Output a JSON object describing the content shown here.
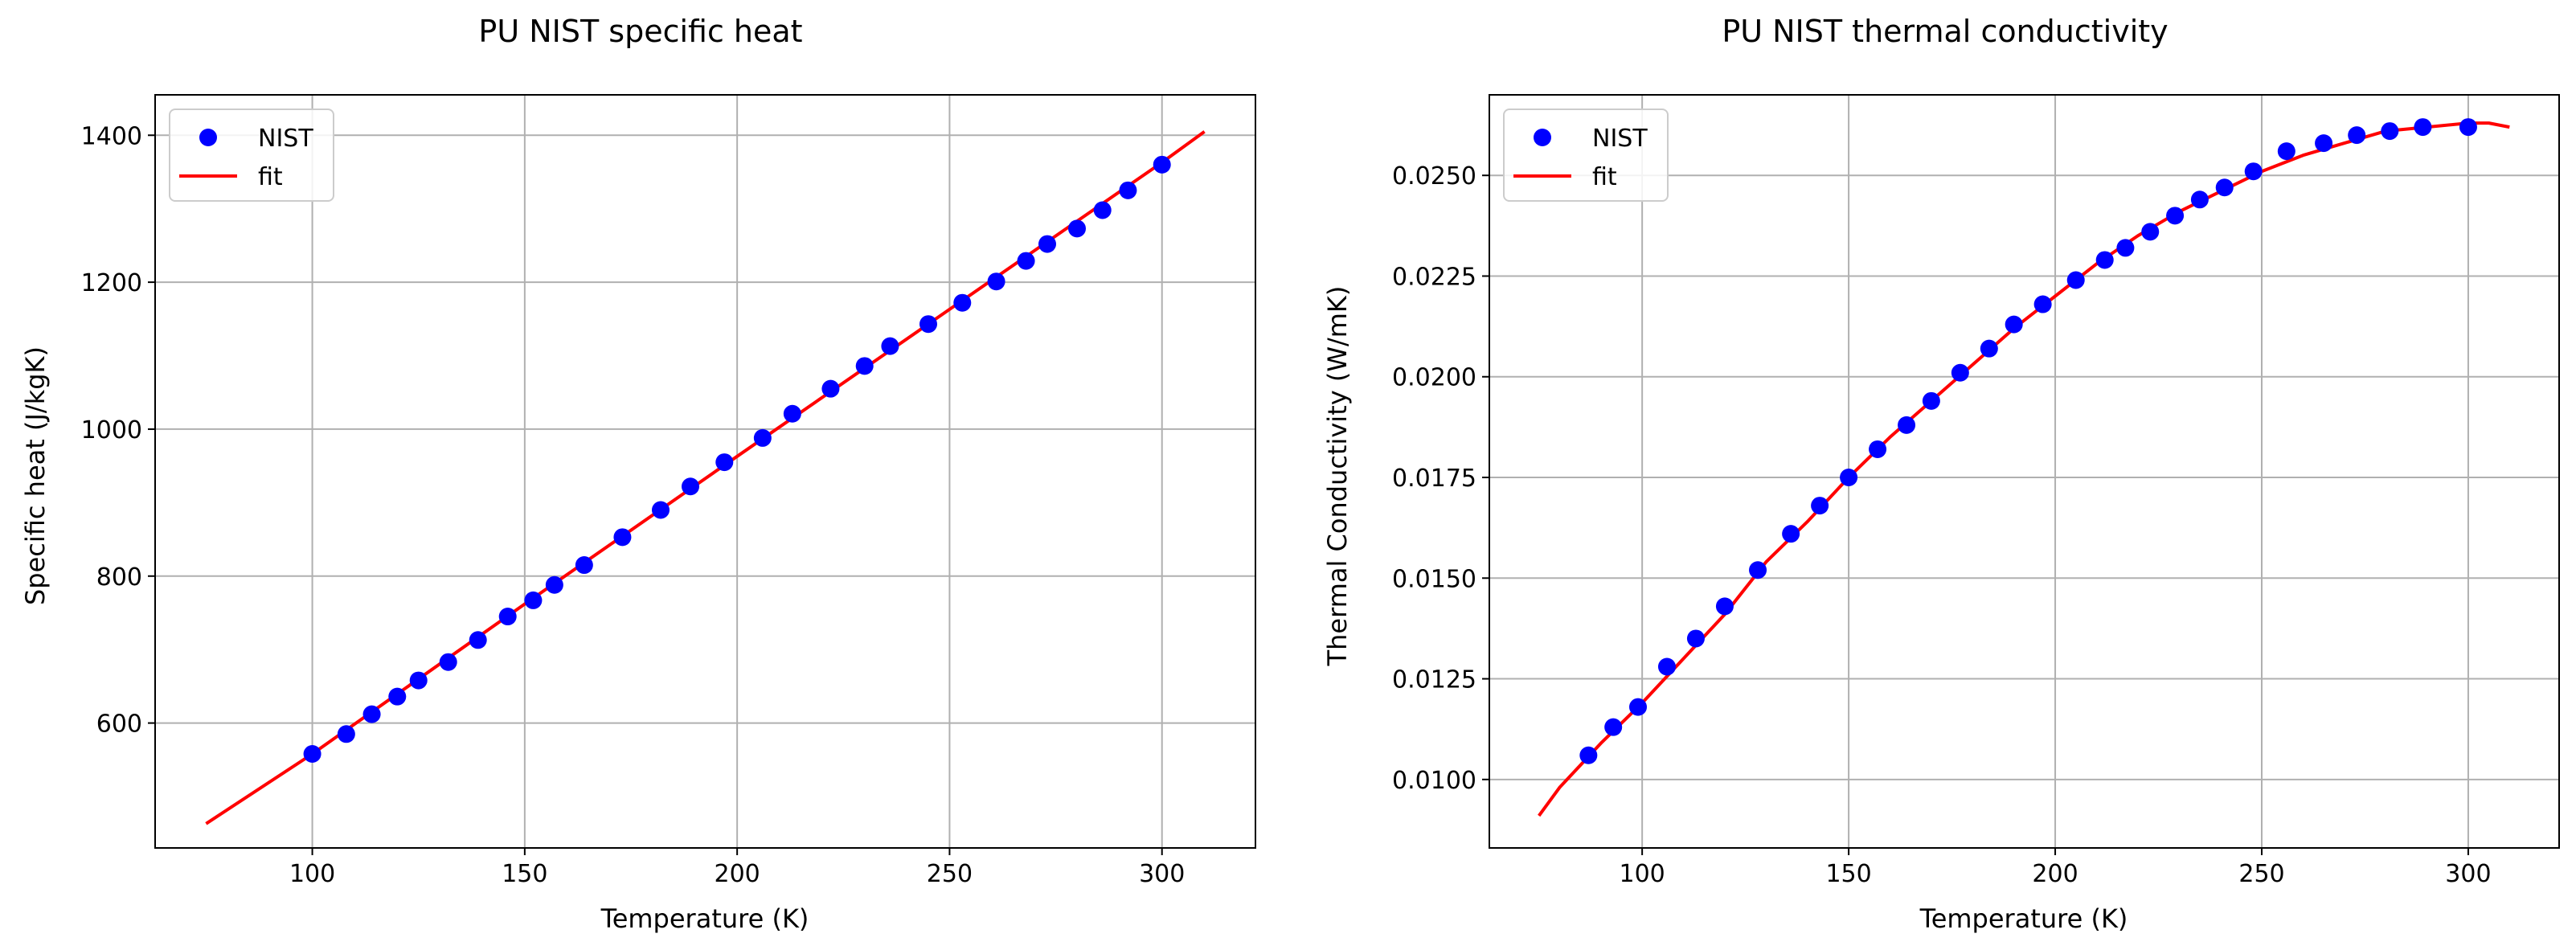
{
  "chart_data": [
    {
      "type": "scatter",
      "title": "PU NIST specific heat",
      "xlabel": "Temperature (K)",
      "ylabel": "Specific heat (J/kgK)",
      "xlim": [
        63,
        322
      ],
      "ylim": [
        430,
        1455
      ],
      "xticks": [
        100,
        150,
        200,
        250,
        300
      ],
      "yticks": [
        600,
        800,
        1000,
        1200,
        1400
      ],
      "ytick_labels": [
        "600",
        "800",
        "1000",
        "1200",
        "1400"
      ],
      "grid": true,
      "legend_position": "top-left",
      "series": [
        {
          "name": "NIST",
          "kind": "markers",
          "color": "#0000ff",
          "x": [
            100,
            108,
            114,
            120,
            125,
            132,
            139,
            146,
            152,
            157,
            164,
            173,
            182,
            189,
            197,
            206,
            213,
            222,
            230,
            236,
            245,
            253,
            261,
            268,
            273,
            280,
            286,
            292,
            300
          ],
          "y": [
            558,
            585,
            612,
            636,
            658,
            683,
            713,
            745,
            767,
            788,
            815,
            853,
            890,
            922,
            955,
            988,
            1021,
            1055,
            1086,
            1113,
            1143,
            1172,
            1201,
            1229,
            1252,
            1273,
            1298,
            1325,
            1360
          ]
        },
        {
          "name": "fit",
          "kind": "line",
          "color": "#ff0000",
          "x": [
            75,
            100,
            150,
            200,
            250,
            300,
            310
          ],
          "y": [
            463,
            558,
            762,
            963,
            1163,
            1363,
            1405
          ]
        }
      ]
    },
    {
      "type": "scatter",
      "title": "PU NIST thermal conductivity",
      "xlabel": "Temperature (K)",
      "ylabel": "Thermal Conductivity (W/mK)",
      "xlim": [
        63,
        322
      ],
      "ylim": [
        0.0083,
        0.027
      ],
      "xticks": [
        100,
        150,
        200,
        250,
        300
      ],
      "yticks": [
        0.01,
        0.0125,
        0.015,
        0.0175,
        0.02,
        0.0225,
        0.025
      ],
      "ytick_labels": [
        "0.0100",
        "0.0125",
        "0.0150",
        "0.0175",
        "0.0200",
        "0.0225",
        "0.0250"
      ],
      "grid": true,
      "legend_position": "top-left",
      "series": [
        {
          "name": "NIST",
          "kind": "markers",
          "color": "#0000ff",
          "x": [
            87,
            93,
            99,
            106,
            113,
            120,
            128,
            136,
            143,
            150,
            157,
            164,
            170,
            177,
            184,
            190,
            197,
            205,
            212,
            217,
            223,
            229,
            235,
            241,
            248,
            256,
            265,
            273,
            281,
            289,
            300
          ],
          "y": [
            0.0106,
            0.0113,
            0.0118,
            0.0128,
            0.0135,
            0.0143,
            0.0152,
            0.0161,
            0.0168,
            0.0175,
            0.0182,
            0.0188,
            0.0194,
            0.0201,
            0.0207,
            0.0213,
            0.0218,
            0.0224,
            0.0229,
            0.0232,
            0.0236,
            0.024,
            0.0244,
            0.0247,
            0.0251,
            0.0256,
            0.0258,
            0.026,
            0.0261,
            0.0262,
            0.0262
          ]
        },
        {
          "name": "fit",
          "kind": "line",
          "color": "#ff0000",
          "x": [
            75,
            80,
            90,
            100,
            110,
            120,
            130,
            140,
            150,
            160,
            170,
            180,
            190,
            200,
            210,
            220,
            230,
            240,
            250,
            260,
            270,
            280,
            290,
            300,
            305,
            310
          ],
          "y": [
            0.0091,
            0.0098,
            0.0109,
            0.0119,
            0.013,
            0.0141,
            0.0154,
            0.0164,
            0.0175,
            0.0185,
            0.0194,
            0.0203,
            0.0212,
            0.022,
            0.0228,
            0.0235,
            0.0241,
            0.0246,
            0.0251,
            0.0255,
            0.0258,
            0.0261,
            0.0262,
            0.0263,
            0.0263,
            0.0262
          ]
        }
      ]
    }
  ]
}
